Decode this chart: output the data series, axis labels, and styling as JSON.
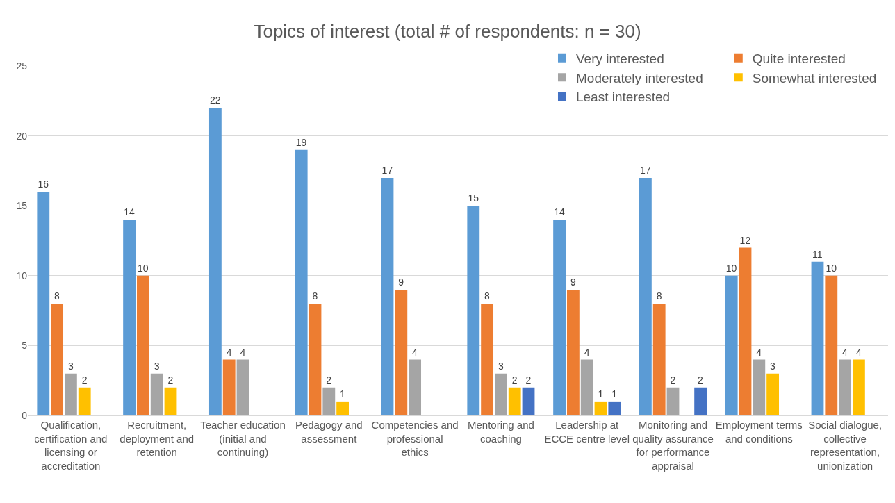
{
  "chart_data": {
    "type": "bar",
    "title": "Topics of interest (total # of respondents: n = 30)",
    "categories": [
      "Qualification, certification and licensing or accreditation",
      "Recruitment, deployment and retention",
      "Teacher education (initial and continuing)",
      "Pedagogy and assessment",
      "Competencies and professional ethics",
      "Mentoring and coaching",
      "Leadership at ECCE centre level",
      "Monitoring and quality assurance for performance appraisal",
      "Employment terms and conditions",
      "Social dialogue, collective representation, unionization"
    ],
    "series": [
      {
        "name": "Very interested",
        "color": "#5b9bd5",
        "values": [
          16,
          14,
          22,
          19,
          17,
          15,
          14,
          17,
          10,
          11
        ]
      },
      {
        "name": "Quite interested",
        "color": "#ed7d31",
        "values": [
          8,
          10,
          4,
          8,
          9,
          8,
          9,
          8,
          12,
          10
        ]
      },
      {
        "name": "Moderately interested",
        "color": "#a5a5a5",
        "values": [
          3,
          3,
          4,
          2,
          4,
          3,
          4,
          2,
          4,
          4
        ]
      },
      {
        "name": "Somewhat interested",
        "color": "#ffc000",
        "values": [
          2,
          2,
          null,
          1,
          null,
          2,
          1,
          null,
          3,
          4
        ]
      },
      {
        "name": "Least interested",
        "color": "#4472c4",
        "values": [
          null,
          null,
          null,
          null,
          null,
          2,
          1,
          2,
          null,
          null
        ]
      }
    ],
    "ylim": [
      0,
      25
    ],
    "yticks": [
      0,
      5,
      10,
      15,
      20,
      25
    ],
    "grid": "y",
    "legend": "top right",
    "data_labels": true
  }
}
